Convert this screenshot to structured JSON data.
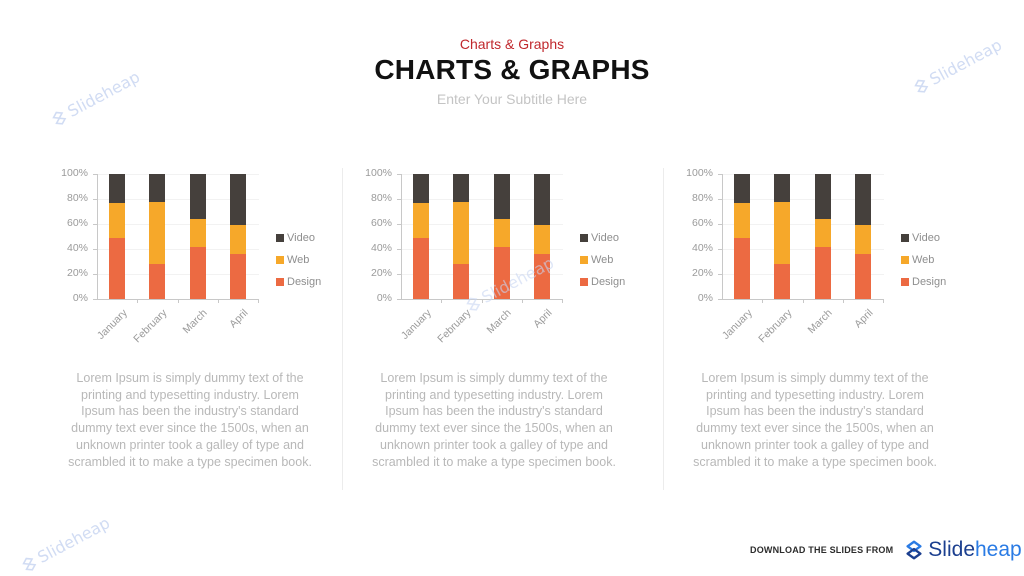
{
  "header": {
    "kicker": "Charts & Graphs",
    "title": "CHARTS & GRAPHS",
    "subtitle": "Enter Your Subtitle Here"
  },
  "colors": {
    "design": "#ec6a42",
    "web": "#f6a82a",
    "video": "#45403c",
    "kicker": "#c0282d",
    "brand_dark": "#1b3f8f",
    "brand_light": "#2a7be4"
  },
  "watermark": {
    "text": "Slideheap",
    "icon": "slideheap-logo-icon"
  },
  "panels": [
    {
      "description": "Lorem Ipsum is simply dummy text of the printing and typesetting industry. Lorem Ipsum has been the industry's standard dummy text ever since the 1500s, when an unknown printer took a galley of type and scrambled it to make a type specimen book."
    },
    {
      "description": "Lorem Ipsum is simply dummy text of the printing and typesetting industry. Lorem Ipsum has been the industry's standard dummy text ever since the 1500s, when an unknown printer took a galley of type and scrambled it to make a type specimen book."
    },
    {
      "description": "Lorem Ipsum is simply dummy text of the printing and typesetting industry. Lorem Ipsum has been the industry's standard dummy text ever since the 1500s, when an unknown printer took a galley of type and scrambled it to make a type specimen book."
    }
  ],
  "chart_data": [
    {
      "type": "bar",
      "stacked": "percent",
      "title": "",
      "xlabel": "",
      "ylabel": "",
      "categories": [
        "January",
        "February",
        "March",
        "April"
      ],
      "series": [
        {
          "name": "Design",
          "values": [
            49,
            28,
            42,
            36
          ]
        },
        {
          "name": "Web",
          "values": [
            28,
            50,
            22,
            23
          ]
        },
        {
          "name": "Video",
          "values": [
            23,
            22,
            36,
            41
          ]
        }
      ],
      "y_ticks": [
        "0%",
        "20%",
        "40%",
        "60%",
        "80%",
        "100%"
      ],
      "ylim": [
        0,
        100
      ],
      "legend": [
        "Video",
        "Web",
        "Design"
      ],
      "legend_position": "right",
      "grid": true
    },
    {
      "type": "bar",
      "stacked": "percent",
      "title": "",
      "xlabel": "",
      "ylabel": "",
      "categories": [
        "January",
        "February",
        "March",
        "April"
      ],
      "series": [
        {
          "name": "Design",
          "values": [
            49,
            28,
            42,
            36
          ]
        },
        {
          "name": "Web",
          "values": [
            28,
            50,
            22,
            23
          ]
        },
        {
          "name": "Video",
          "values": [
            23,
            22,
            36,
            41
          ]
        }
      ],
      "y_ticks": [
        "0%",
        "20%",
        "40%",
        "60%",
        "80%",
        "100%"
      ],
      "ylim": [
        0,
        100
      ],
      "legend": [
        "Video",
        "Web",
        "Design"
      ],
      "legend_position": "right",
      "grid": true
    },
    {
      "type": "bar",
      "stacked": "percent",
      "title": "",
      "xlabel": "",
      "ylabel": "",
      "categories": [
        "January",
        "February",
        "March",
        "April"
      ],
      "series": [
        {
          "name": "Design",
          "values": [
            49,
            28,
            42,
            36
          ]
        },
        {
          "name": "Web",
          "values": [
            28,
            50,
            22,
            23
          ]
        },
        {
          "name": "Video",
          "values": [
            23,
            22,
            36,
            41
          ]
        }
      ],
      "y_ticks": [
        "0%",
        "20%",
        "40%",
        "60%",
        "80%",
        "100%"
      ],
      "ylim": [
        0,
        100
      ],
      "legend": [
        "Video",
        "Web",
        "Design"
      ],
      "legend_position": "right",
      "grid": true
    }
  ],
  "footer": {
    "text": "DOWNLOAD THE SLIDES FROM",
    "brand_part1": "Slide",
    "brand_part2": "heap"
  }
}
